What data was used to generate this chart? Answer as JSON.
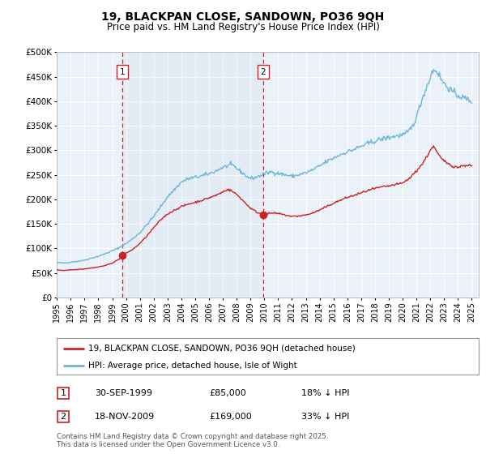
{
  "title": "19, BLACKPAN CLOSE, SANDOWN, PO36 9QH",
  "subtitle": "Price paid vs. HM Land Registry's House Price Index (HPI)",
  "ylim": [
    0,
    500000
  ],
  "xlim": [
    1995.0,
    2025.5
  ],
  "yticks": [
    0,
    50000,
    100000,
    150000,
    200000,
    250000,
    300000,
    350000,
    400000,
    450000,
    500000
  ],
  "ytick_labels": [
    "£0",
    "£50K",
    "£100K",
    "£150K",
    "£200K",
    "£250K",
    "£300K",
    "£350K",
    "£400K",
    "£450K",
    "£500K"
  ],
  "hpi_color": "#6eb5db",
  "price_color": "#cc2222",
  "vline_color": "#cc2222",
  "bg_color": "#eaf1f8",
  "marker1_x": 1999.75,
  "marker1_y": 85000,
  "marker2_x": 2009.9,
  "marker2_y": 169000,
  "legend_label1": "19, BLACKPAN CLOSE, SANDOWN, PO36 9QH (detached house)",
  "legend_label2": "HPI: Average price, detached house, Isle of Wight",
  "table_row1": [
    "1",
    "30-SEP-1999",
    "£85,000",
    "18% ↓ HPI"
  ],
  "table_row2": [
    "2",
    "18-NOV-2009",
    "£169,000",
    "33% ↓ HPI"
  ],
  "footer": "Contains HM Land Registry data © Crown copyright and database right 2025.\nThis data is licensed under the Open Government Licence v3.0.",
  "grid_color": "#ffffff",
  "xticks": [
    1995,
    1996,
    1997,
    1998,
    1999,
    2000,
    2001,
    2002,
    2003,
    2004,
    2005,
    2006,
    2007,
    2008,
    2009,
    2010,
    2011,
    2012,
    2013,
    2014,
    2015,
    2016,
    2017,
    2018,
    2019,
    2020,
    2021,
    2022,
    2023,
    2024,
    2025
  ],
  "hpi_key": [
    [
      1995.0,
      71000
    ],
    [
      1995.5,
      70000
    ],
    [
      1996.0,
      72000
    ],
    [
      1996.5,
      73500
    ],
    [
      1997.0,
      76000
    ],
    [
      1997.5,
      80000
    ],
    [
      1998.0,
      84000
    ],
    [
      1998.5,
      89000
    ],
    [
      1999.0,
      95000
    ],
    [
      1999.5,
      101000
    ],
    [
      2000.0,
      110000
    ],
    [
      2000.5,
      120000
    ],
    [
      2001.0,
      132000
    ],
    [
      2001.5,
      148000
    ],
    [
      2002.0,
      165000
    ],
    [
      2002.5,
      185000
    ],
    [
      2003.0,
      205000
    ],
    [
      2003.5,
      220000
    ],
    [
      2004.0,
      235000
    ],
    [
      2004.5,
      242000
    ],
    [
      2005.0,
      245000
    ],
    [
      2005.5,
      248000
    ],
    [
      2006.0,
      252000
    ],
    [
      2006.5,
      258000
    ],
    [
      2007.0,
      265000
    ],
    [
      2007.5,
      270000
    ],
    [
      2007.8,
      268000
    ],
    [
      2008.0,
      263000
    ],
    [
      2008.5,
      252000
    ],
    [
      2008.8,
      245000
    ],
    [
      2009.0,
      243000
    ],
    [
      2009.3,
      244000
    ],
    [
      2009.6,
      247000
    ],
    [
      2010.0,
      252000
    ],
    [
      2010.5,
      256000
    ],
    [
      2011.0,
      253000
    ],
    [
      2011.5,
      250000
    ],
    [
      2012.0,
      247000
    ],
    [
      2012.5,
      250000
    ],
    [
      2013.0,
      254000
    ],
    [
      2013.5,
      260000
    ],
    [
      2014.0,
      268000
    ],
    [
      2014.5,
      277000
    ],
    [
      2015.0,
      284000
    ],
    [
      2015.5,
      291000
    ],
    [
      2016.0,
      297000
    ],
    [
      2016.5,
      302000
    ],
    [
      2017.0,
      308000
    ],
    [
      2017.5,
      314000
    ],
    [
      2018.0,
      319000
    ],
    [
      2018.5,
      323000
    ],
    [
      2019.0,
      326000
    ],
    [
      2019.5,
      329000
    ],
    [
      2020.0,
      331000
    ],
    [
      2020.3,
      335000
    ],
    [
      2020.7,
      348000
    ],
    [
      2021.0,
      368000
    ],
    [
      2021.3,
      395000
    ],
    [
      2021.6,
      420000
    ],
    [
      2021.9,
      440000
    ],
    [
      2022.1,
      458000
    ],
    [
      2022.3,
      465000
    ],
    [
      2022.5,
      460000
    ],
    [
      2022.7,
      450000
    ],
    [
      2022.9,
      440000
    ],
    [
      2023.2,
      430000
    ],
    [
      2023.5,
      422000
    ],
    [
      2023.8,
      415000
    ],
    [
      2024.0,
      412000
    ],
    [
      2024.3,
      408000
    ],
    [
      2024.6,
      405000
    ],
    [
      2025.0,
      400000
    ]
  ],
  "red_key": [
    [
      1995.0,
      56000
    ],
    [
      1995.5,
      55000
    ],
    [
      1996.0,
      56000
    ],
    [
      1996.5,
      57000
    ],
    [
      1997.0,
      58000
    ],
    [
      1997.5,
      60000
    ],
    [
      1998.0,
      62000
    ],
    [
      1998.5,
      65000
    ],
    [
      1999.0,
      70000
    ],
    [
      1999.5,
      78000
    ],
    [
      1999.75,
      85000
    ],
    [
      2000.0,
      90000
    ],
    [
      2000.5,
      98000
    ],
    [
      2001.0,
      110000
    ],
    [
      2001.5,
      125000
    ],
    [
      2002.0,
      142000
    ],
    [
      2002.5,
      158000
    ],
    [
      2003.0,
      170000
    ],
    [
      2003.5,
      178000
    ],
    [
      2004.0,
      185000
    ],
    [
      2004.5,
      190000
    ],
    [
      2005.0,
      194000
    ],
    [
      2005.5,
      198000
    ],
    [
      2006.0,
      203000
    ],
    [
      2006.5,
      208000
    ],
    [
      2007.0,
      215000
    ],
    [
      2007.3,
      220000
    ],
    [
      2007.6,
      218000
    ],
    [
      2008.0,
      210000
    ],
    [
      2008.3,
      202000
    ],
    [
      2008.6,
      193000
    ],
    [
      2009.0,
      182000
    ],
    [
      2009.5,
      173000
    ],
    [
      2009.9,
      169000
    ],
    [
      2010.2,
      170000
    ],
    [
      2010.5,
      172000
    ],
    [
      2011.0,
      171000
    ],
    [
      2011.5,
      168000
    ],
    [
      2012.0,
      165000
    ],
    [
      2012.5,
      166000
    ],
    [
      2013.0,
      168000
    ],
    [
      2013.5,
      172000
    ],
    [
      2014.0,
      178000
    ],
    [
      2014.5,
      185000
    ],
    [
      2015.0,
      192000
    ],
    [
      2015.5,
      198000
    ],
    [
      2016.0,
      204000
    ],
    [
      2016.5,
      208000
    ],
    [
      2017.0,
      213000
    ],
    [
      2017.5,
      218000
    ],
    [
      2018.0,
      222000
    ],
    [
      2018.5,
      225000
    ],
    [
      2019.0,
      227000
    ],
    [
      2019.5,
      230000
    ],
    [
      2020.0,
      233000
    ],
    [
      2020.5,
      243000
    ],
    [
      2021.0,
      258000
    ],
    [
      2021.5,
      275000
    ],
    [
      2021.8,
      290000
    ],
    [
      2022.0,
      300000
    ],
    [
      2022.2,
      308000
    ],
    [
      2022.3,
      305000
    ],
    [
      2022.5,
      295000
    ],
    [
      2022.8,
      283000
    ],
    [
      2023.0,
      278000
    ],
    [
      2023.3,
      273000
    ],
    [
      2023.6,
      268000
    ],
    [
      2024.0,
      265000
    ],
    [
      2024.3,
      268000
    ],
    [
      2024.6,
      270000
    ],
    [
      2025.0,
      268000
    ]
  ]
}
